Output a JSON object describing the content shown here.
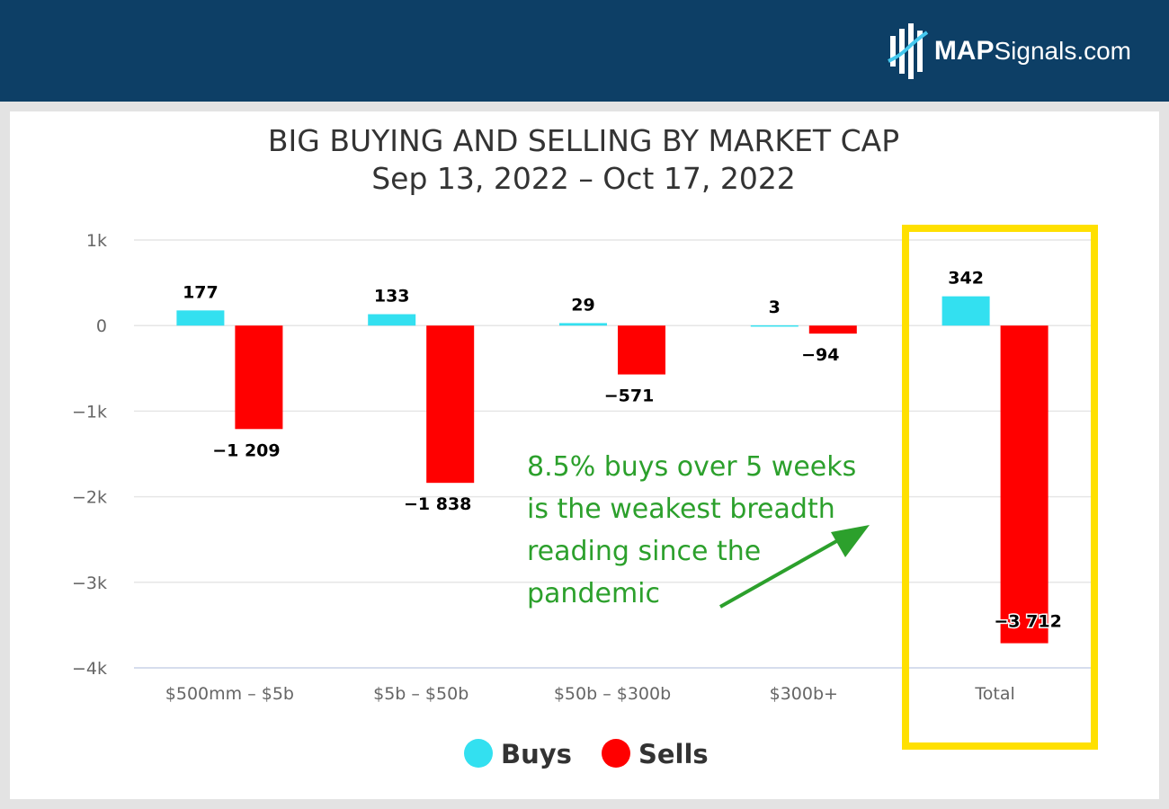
{
  "brand": {
    "name_bold": "MAP",
    "name_rest": "Signals.com"
  },
  "annotation": {
    "lines": [
      "8.5% buys over 5 weeks",
      "is the weakest breadth",
      "reading since the",
      "pandemic"
    ],
    "color": "#2ca02c"
  },
  "colors": {
    "buys": "#33e0f0",
    "sells": "#ff0000",
    "highlight": "#ffe000",
    "header": "#0d3f66"
  },
  "chart_data": {
    "type": "bar",
    "title": "BIG BUYING AND SELLING BY MARKET CAP",
    "subtitle": "Sep 13, 2022 – Oct 17, 2022",
    "categories": [
      "$500mm – $5b",
      "$5b – $50b",
      "$50b – $300b",
      "$300b+",
      "Total"
    ],
    "series": [
      {
        "name": "Buys",
        "values": [
          177,
          133,
          29,
          3,
          342
        ],
        "labels": [
          "177",
          "133",
          "29",
          "3",
          "342"
        ]
      },
      {
        "name": "Sells",
        "values": [
          -1209,
          -1838,
          -571,
          -94,
          -3712
        ],
        "labels": [
          "−1 209",
          "−1 838",
          "−571",
          "−94",
          "−3 712"
        ]
      }
    ],
    "ylim": [
      -4000,
      1000
    ],
    "yticks": [
      1000,
      0,
      -1000,
      -2000,
      -3000,
      -4000
    ],
    "ytick_labels": [
      "1k",
      "0",
      "−1k",
      "−2k",
      "−3k",
      "−4k"
    ],
    "grid": true,
    "legend": "bottom-center",
    "highlighted_category": "Total"
  }
}
